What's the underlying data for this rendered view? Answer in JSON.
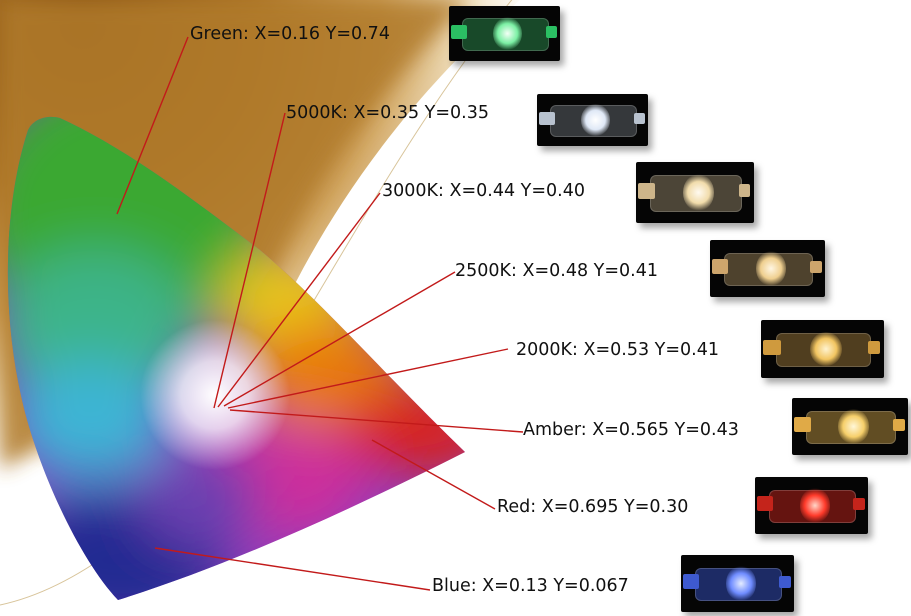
{
  "labels": [
    {
      "name": "Green",
      "text": "Green: X=0.16  Y=0.74"
    },
    {
      "name": "5000K",
      "text": "5000K: X=0.35  Y=0.35"
    },
    {
      "name": "3000K",
      "text": "3000K: X=0.44  Y=0.40"
    },
    {
      "name": "2500K",
      "text": "2500K: X=0.48  Y=0.41"
    },
    {
      "name": "2000K",
      "text": "2000K: X=0.53  Y=0.41"
    },
    {
      "name": "Amber",
      "text": "Amber: X=0.565  Y=0.43"
    },
    {
      "name": "Red",
      "text": "Red: X=0.695  Y=0.30"
    },
    {
      "name": "Blue",
      "text": "Blue: X=0.13  Y=0.067"
    }
  ],
  "colors": {
    "background_gold": "#b07a2c",
    "leader_line": "#c21a1a",
    "led_green": "#3fe27a",
    "led_5000K": "#e8eef8",
    "led_3000K": "#f3e2b8",
    "led_2500K": "#f0d39a",
    "led_2000K": "#f2c561",
    "led_amber": "#f6cf6a",
    "led_red": "#ff3a2a",
    "led_blue": "#6f8cff"
  }
}
